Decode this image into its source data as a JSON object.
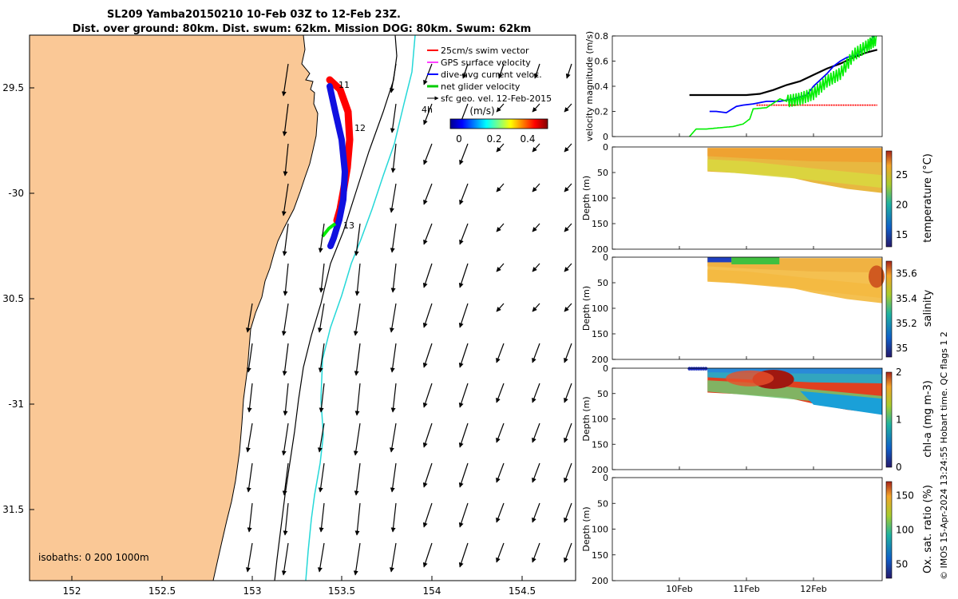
{
  "title_line1": "SL209 Yamba20150210 10-Feb 03Z to 12-Feb 23Z.",
  "title_line2": "Dist. over ground: 80km. Dist. swum: 62km. Mission DOG: 80km. Swum: 62km",
  "map": {
    "lon_ticks": [
      "152",
      "152.5",
      "153",
      "153.5",
      "154",
      "154.5"
    ],
    "lat_ticks": [
      "29.5",
      "-30",
      "30.5",
      "-31",
      "31.5"
    ],
    "isobaths_label": "isobaths: 0   200  1000m",
    "day_labels": [
      "11",
      "12",
      "13"
    ],
    "vector_label": "4h",
    "legend": [
      "25cm/s swim vector",
      "GPS surface velocity",
      "dive-avg current veloc.",
      "net glider velocity",
      "sfc geo. vel. 12-Feb-2015"
    ],
    "colorbar_title": "(m/s)",
    "colorbar_ticks": [
      "0",
      "0.2",
      "0.4"
    ],
    "colors": {
      "land": "#fac896",
      "track": "#1010e0",
      "shelf": "#25d8d8"
    }
  },
  "timeseries_ticks": [
    "10Feb",
    "11Feb",
    "12Feb"
  ],
  "panels": [
    {
      "ylabel": "velocity magnitude (m/s)",
      "yticks": [
        "0",
        "0.2",
        "0.4",
        "0.6",
        "0.8"
      ]
    },
    {
      "ylabel": "Depth (m)",
      "yticks": [
        "0",
        "50",
        "100",
        "150",
        "200"
      ],
      "cbar_label": "temperature (°C)",
      "cbar_ticks": [
        "15",
        "20",
        "25"
      ]
    },
    {
      "ylabel": "Depth (m)",
      "yticks": [
        "0",
        "50",
        "100",
        "150",
        "200"
      ],
      "cbar_label": "salinity",
      "cbar_ticks": [
        "35",
        "35.2",
        "35.4",
        "35.6"
      ]
    },
    {
      "ylabel": "Depth (m)",
      "yticks": [
        "0",
        "50",
        "100",
        "150",
        "200"
      ],
      "cbar_label": "chl-a (mg m-3)",
      "cbar_ticks": [
        "0",
        "1",
        "2"
      ]
    },
    {
      "ylabel": "Depth (m)",
      "yticks": [
        "0",
        "50",
        "100",
        "150",
        "200"
      ],
      "cbar_label": "Ox. sat. ratio (%)",
      "cbar_ticks": [
        "50",
        "100",
        "150"
      ]
    }
  ],
  "side_note": "© IMOS 15-Apr-2024 13:24:55 Hobart time. QC flags 1  2",
  "chart_data": [
    {
      "type": "line",
      "ylim": [
        0,
        0.8
      ],
      "xlim": [
        9.0,
        13.0
      ],
      "series": [
        {
          "color": "#000000",
          "x": [
            10.15,
            10.5,
            10.8,
            11.0,
            11.2,
            11.4,
            11.6,
            11.8,
            12.0,
            12.2,
            12.4,
            12.6,
            12.8,
            12.95
          ],
          "y": [
            0.33,
            0.33,
            0.33,
            0.33,
            0.34,
            0.37,
            0.41,
            0.44,
            0.49,
            0.54,
            0.58,
            0.63,
            0.67,
            0.69
          ]
        },
        {
          "color": "#0000ff",
          "x": [
            10.45,
            10.55,
            10.7,
            10.85,
            10.95,
            11.1,
            11.3,
            11.5,
            11.7,
            11.9,
            12.0,
            12.1,
            12.2,
            12.3,
            12.4,
            12.5,
            12.65,
            12.8,
            12.9
          ],
          "y": [
            0.2,
            0.2,
            0.19,
            0.24,
            0.25,
            0.26,
            0.28,
            0.28,
            0.3,
            0.33,
            0.4,
            0.45,
            0.5,
            0.56,
            0.6,
            0.63,
            0.65,
            0.72,
            0.8
          ]
        },
        {
          "color": "#ff0000",
          "x": [
            11.15,
            12.95
          ],
          "y": [
            0.25,
            0.25
          ]
        },
        {
          "color": "#00ee00",
          "x": [
            10.15,
            10.25,
            10.4,
            10.6,
            10.8,
            10.95,
            11.05,
            11.1,
            11.3,
            11.5,
            11.6,
            11.8,
            12.0,
            12.2,
            12.4,
            12.6,
            12.8,
            12.95
          ],
          "y": [
            0.0,
            0.06,
            0.06,
            0.07,
            0.08,
            0.1,
            0.14,
            0.22,
            0.23,
            0.3,
            0.28,
            0.3,
            0.34,
            0.44,
            0.5,
            0.65,
            0.72,
            0.78
          ]
        }
      ]
    },
    {
      "type": "heatmap",
      "variable": "temperature",
      "range": [
        13,
        29
      ],
      "values": [
        28,
        27,
        24,
        22
      ]
    },
    {
      "type": "heatmap",
      "variable": "salinity",
      "range": [
        34.9,
        35.7
      ],
      "values": [
        35.1,
        35.55,
        35.55,
        35.6
      ]
    },
    {
      "type": "heatmap",
      "variable": "chl-a",
      "range": [
        0,
        2
      ],
      "values": [
        0.8,
        1.6,
        1.0,
        0.6
      ]
    },
    {
      "type": "heatmap",
      "variable": "oxygen saturation",
      "range": [
        30,
        170
      ],
      "values": []
    }
  ]
}
